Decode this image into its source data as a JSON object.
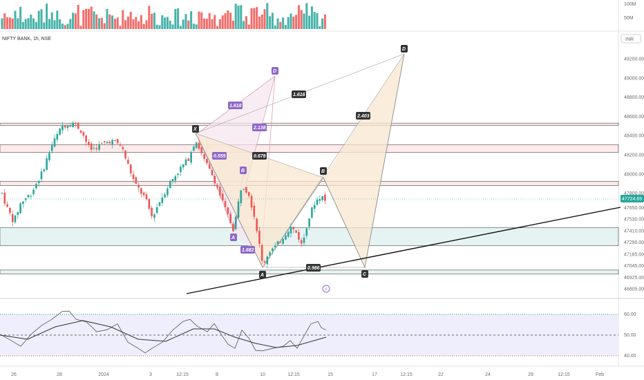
{
  "header": {
    "symbol_line": "NIFTY BANK, 1h, NSE",
    "currency": "INR"
  },
  "colors": {
    "up": "#26a69a",
    "down": "#ef5350",
    "pattern_fill": "#f8e7cf",
    "pattern_line": "#c7a57a",
    "bat_line": "#d9a0b7",
    "bat_label": "#8d67c9",
    "rsi_line": "#555555",
    "rsi_ma": "#333333",
    "rsi_band": "#eeeefc"
  },
  "chart_data": [
    {
      "type": "candlestick",
      "title": "NIFTY BANK, 1h, NSE",
      "price_ticks": [
        "49200.00",
        "49000.00",
        "48800.00",
        "48600.00",
        "48400.00",
        "48200.00",
        "48000.00",
        "47800.00",
        "47650.00",
        "47530.00",
        "47410.00",
        "47290.00",
        "47165.00",
        "47045.00",
        "46925.00",
        "46805.00"
      ],
      "last_price": "47724.65",
      "time_ticks": [
        "26",
        "28",
        "2024",
        "3",
        "12:15",
        "8",
        "10",
        "12:15",
        "15",
        "17",
        "12:15",
        "22",
        "24",
        "29",
        "12:15",
        "Feb"
      ],
      "harmonic_points": [
        {
          "id": "x",
          "label": "X",
          "value": 48365
        },
        {
          "id": "a",
          "label": "A",
          "value": 47005
        },
        {
          "id": "b",
          "label": "B",
          "value": 47960
        },
        {
          "id": "c",
          "label": "C",
          "value": 47005
        },
        {
          "id": "d",
          "label": "D",
          "value": 49290
        }
      ],
      "harmonic_ratios": [
        "0.678",
        "1.616",
        "0.986",
        "2.403"
      ],
      "inner_pattern_points": [
        "D",
        "B",
        "A"
      ],
      "inner_ratios": [
        "1.618",
        "2.138",
        "0.555",
        "1.682"
      ],
      "zones": [
        {
          "name": "resistance-1",
          "from": 48505,
          "to": 48530,
          "color": "#ef5350"
        },
        {
          "name": "resistance-2",
          "from": 48225,
          "to": 48305,
          "color": "#ef5350"
        },
        {
          "name": "resistance-3",
          "from": 47880,
          "to": 47925,
          "color": "#ef5350"
        },
        {
          "name": "support-1",
          "from": 47255,
          "to": 47440,
          "color": "#26a69a"
        },
        {
          "name": "support-2",
          "from": 46960,
          "to": 47000,
          "color": "#26a69a"
        }
      ]
    },
    {
      "type": "bar",
      "title": "Volume",
      "ticks": [
        "100M",
        "50M"
      ]
    },
    {
      "type": "line",
      "title": "RSI",
      "ticks": [
        "60.00",
        "50.00",
        "40.00"
      ],
      "levels": [
        60,
        50,
        40
      ]
    }
  ]
}
